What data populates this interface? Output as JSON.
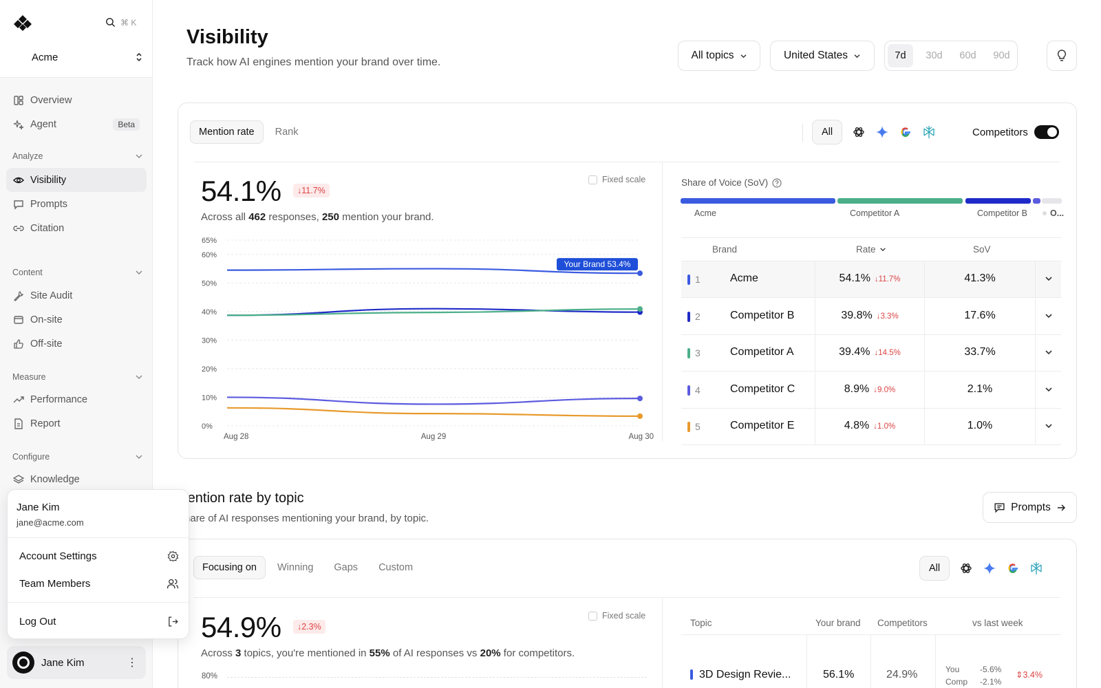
{
  "sidebar": {
    "org": "Acme",
    "search_shortcut": "⌘ K",
    "items": [
      {
        "label": "Overview"
      },
      {
        "label": "Agent",
        "badge": "Beta"
      },
      {
        "label": "Visibility"
      },
      {
        "label": "Prompts"
      },
      {
        "label": "Citation"
      },
      {
        "label": "Site Audit"
      },
      {
        "label": "On-site"
      },
      {
        "label": "Off-site"
      },
      {
        "label": "Performance"
      },
      {
        "label": "Report"
      },
      {
        "label": "Knowledge"
      }
    ],
    "sections": {
      "analyze": "Analyze",
      "content": "Content",
      "measure": "Measure",
      "configure": "Configure"
    }
  },
  "user_menu": {
    "name": "Jane Kim",
    "email": "jane@acme.com",
    "account_settings": "Account Settings",
    "team_members": "Team Members",
    "logout": "Log Out"
  },
  "user_chip": {
    "name": "Jane Kim"
  },
  "header": {
    "title": "Visibility",
    "subtitle": "Track how AI engines mention your brand over time.",
    "topics": "All topics",
    "country": "United States",
    "ranges": [
      "7d",
      "30d",
      "60d",
      "90d"
    ],
    "selected_range": "7d"
  },
  "mention_card": {
    "tabs": [
      "Mention rate",
      "Rank"
    ],
    "engine_all": "All",
    "competitors_label": "Competitors",
    "competitors_on": true,
    "big_value": "54.1%",
    "delta": "↓11.7%",
    "note_pre": "Across all ",
    "note_responses": "462",
    "note_mid": " responses, ",
    "note_mentions": "250",
    "note_post": " mention your brand.",
    "fixed_scale": "Fixed scale",
    "sov_title": "Share of Voice (SoV)",
    "sov_labels": [
      "Acme",
      "Competitor A",
      "Competitor B",
      "O..."
    ],
    "table_headers": {
      "brand": "Brand",
      "rate": "Rate",
      "sov": "SoV"
    },
    "rows": [
      {
        "rank": "1",
        "brand": "Acme",
        "rate": "54.1%",
        "delta": "↓11.7%",
        "sov": "41.3%",
        "color": "#3a5be0"
      },
      {
        "rank": "2",
        "brand": "Competitor B",
        "rate": "39.8%",
        "delta": "↓3.3%",
        "sov": "17.6%",
        "color": "#1f2bc8"
      },
      {
        "rank": "3",
        "brand": "Competitor A",
        "rate": "39.4%",
        "delta": "↓14.5%",
        "sov": "33.7%",
        "color": "#4caf8a"
      },
      {
        "rank": "4",
        "brand": "Competitor C",
        "rate": "8.9%",
        "delta": "↓9.0%",
        "sov": "2.1%",
        "color": "#5b5be0"
      },
      {
        "rank": "5",
        "brand": "Competitor E",
        "rate": "4.8%",
        "delta": "↓1.0%",
        "sov": "1.0%",
        "color": "#e89a2c"
      }
    ]
  },
  "chart_data": {
    "type": "line",
    "x": [
      "Aug 28",
      "Aug 29",
      "Aug 30"
    ],
    "ylim": [
      0,
      65
    ],
    "yticks": [
      "0%",
      "10%",
      "20%",
      "30%",
      "40%",
      "50%",
      "60%",
      "65%"
    ],
    "tooltip": "Your Brand 53.4%",
    "series": [
      {
        "values": [
          54.5,
          55.0,
          53.4
        ],
        "color": "#3a5be0"
      },
      {
        "values": [
          38.7,
          41.0,
          39.8
        ],
        "color": "#1f2bc8"
      },
      {
        "values": [
          38.7,
          39.7,
          40.9
        ],
        "color": "#4caf8a"
      },
      {
        "values": [
          10.0,
          7.6,
          9.6
        ],
        "color": "#5b5be0"
      },
      {
        "values": [
          6.3,
          4.3,
          3.4
        ],
        "color": "#e89a2c"
      }
    ]
  },
  "topic_section": {
    "title": "Mention rate by topic",
    "subtitle": "Share of AI responses mentioning your brand, by topic.",
    "prompts_button": "Prompts",
    "tabs": [
      "Focusing on",
      "Winning",
      "Gaps",
      "Custom"
    ],
    "engine_all": "All",
    "big_value": "54.9%",
    "delta": "↓2.3%",
    "note_pre": "Across ",
    "note_topics": "3",
    "note_mid": " topics, you're mentioned in ",
    "note_you": "55%",
    "note_mid2": " of AI responses vs ",
    "note_comp": "20%",
    "note_post": " for competitors.",
    "fixed_scale": "Fixed scale",
    "y_first_tick": "80%",
    "headers": {
      "topic": "Topic",
      "your_brand": "Your brand",
      "competitors": "Competitors",
      "vs_last_week": "vs last week"
    },
    "row": {
      "topic": "3D Design Revie...",
      "your_brand": "56.1%",
      "competitors": "24.9%",
      "you_label": "You",
      "you_delta": "-5.6%",
      "comp_label": "Comp",
      "comp_delta": "-2.1%",
      "change": "3.4%"
    }
  }
}
